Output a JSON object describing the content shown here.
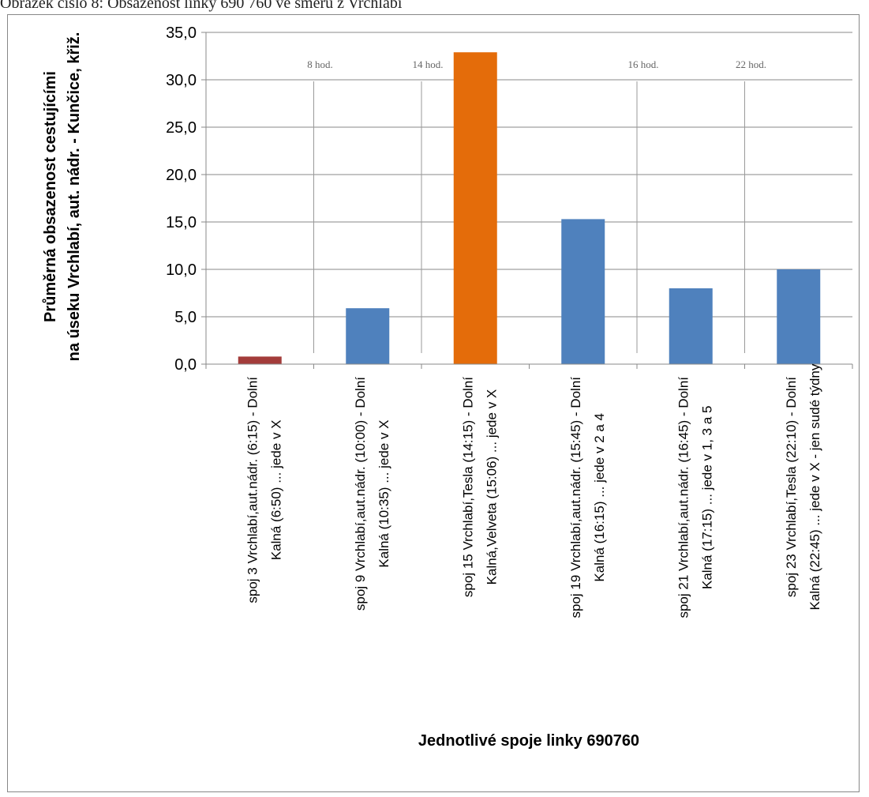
{
  "caption": "Obrázek číslo 8: Obsazenost linky 690 760 ve směru z Vrchlabí",
  "chart_data": {
    "type": "bar",
    "categories": [
      [
        "spoj 3 Vrchlabí,aut.nádr. (6:15) - Dolní",
        "Kalná (6:50) ... jede v X"
      ],
      [
        "spoj 9 Vrchlabí,aut.nádr. (10:00) - Dolní",
        "Kalná (10:35) ... jede v X"
      ],
      [
        "spoj 15 Vrchlabí,Tesla (14:15) - Dolní",
        "Kalná,Velveta (15:06) ... jede v X"
      ],
      [
        "spoj 19 Vrchlabí,aut.nádr. (15:45) - Dolní",
        "Kalná (16:15) ... jede v 2 a 4"
      ],
      [
        "spoj 21 Vrchlabí,aut.nádr. (16:45) - Dolní",
        "Kalná (17:15) ... jede v 1, 3 a 5"
      ],
      [
        "spoj 23 Vrchlabí,Tesla (22:10) - Dolní",
        "Kalná (22:45) ... jede v X - jen sudé týdny"
      ]
    ],
    "values": [
      0.8,
      5.9,
      32.9,
      15.3,
      8.0,
      10.0
    ],
    "colors": [
      "#a33c3a",
      "#4f81bd",
      "#e46c0a",
      "#4f81bd",
      "#4f81bd",
      "#4f81bd"
    ],
    "xlabel": "Jednotlivé spoje linky 690760",
    "ylabel": [
      "Průměrná obsazenost cestujícími",
      "na úseku Vrchlabí,  aut. nádr. - Kunčice, křiž."
    ],
    "ylim": [
      0,
      35
    ],
    "yticks": [
      "0,0",
      "5,0",
      "10,0",
      "15,0",
      "20,0",
      "25,0",
      "30,0",
      "35,0"
    ],
    "grid": true,
    "time_markers": [
      {
        "label": "8 hod.",
        "between": [
          0,
          1
        ]
      },
      {
        "label": "14 hod.",
        "between": [
          1,
          2
        ]
      },
      {
        "label": "16 hod.",
        "between": [
          3,
          4
        ]
      },
      {
        "label": "22 hod.",
        "between": [
          4,
          5
        ]
      }
    ]
  }
}
